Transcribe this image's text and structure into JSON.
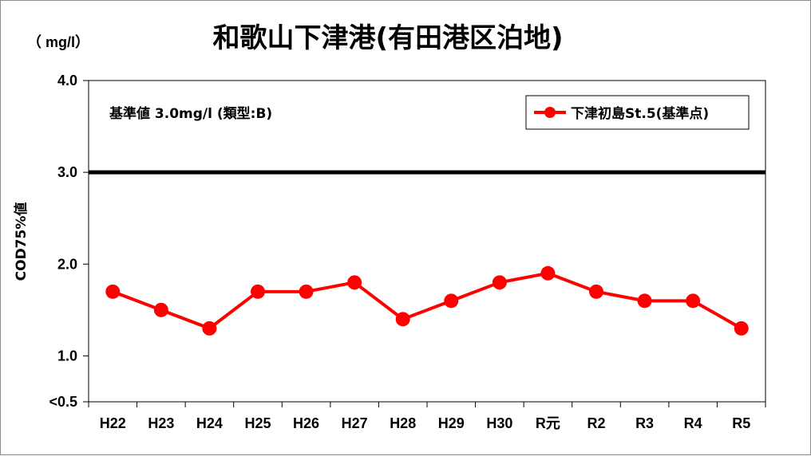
{
  "chart_data": {
    "type": "line",
    "title": "和歌山下津港(有田港区泊地)",
    "unit_label": "（ mg/l）",
    "ylabel": "COD75%値",
    "standard_note": "基準値  3.0mg/l (類型:B)",
    "ylim": [
      0.5,
      4.0
    ],
    "y_ticks": [
      "4.0",
      "3.0",
      "2.0",
      "1.0",
      "<0.5"
    ],
    "y_tick_values": [
      4.0,
      3.0,
      2.0,
      1.0,
      0.5
    ],
    "grid": false,
    "legend_position": "top-right",
    "categories": [
      "H22",
      "H23",
      "H24",
      "H25",
      "H26",
      "H27",
      "H28",
      "H29",
      "H30",
      "R元",
      "R2",
      "R3",
      "R4",
      "R5"
    ],
    "series": [
      {
        "name": "下津初島St.5(基準点)",
        "color": "#ff0000",
        "values": [
          1.7,
          1.5,
          1.3,
          1.7,
          1.7,
          1.8,
          1.4,
          1.6,
          1.8,
          1.9,
          1.7,
          1.6,
          1.6,
          1.3
        ]
      }
    ],
    "reference_line": {
      "value": 3.0,
      "color": "#000000"
    }
  }
}
